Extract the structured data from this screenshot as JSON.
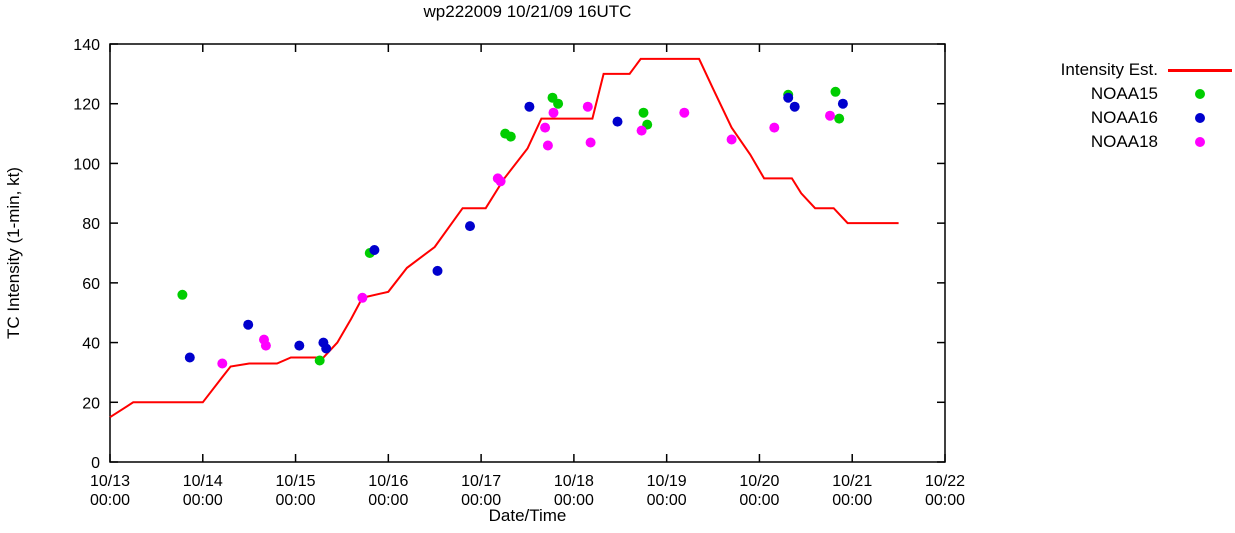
{
  "title": "wp222009 10/21/09 16UTC",
  "chart_data": {
    "type": "line",
    "title": "wp222009 10/21/09 16UTC",
    "xlabel": "Date/Time",
    "ylabel": "TC Intensity (1-min, kt)",
    "xlim": [
      0,
      9
    ],
    "ylim": [
      0,
      140
    ],
    "grid": false,
    "legend_position": "outside-right",
    "x_ticks": [
      {
        "day": 0,
        "date": "10/13",
        "time": "00:00"
      },
      {
        "day": 1,
        "date": "10/14",
        "time": "00:00"
      },
      {
        "day": 2,
        "date": "10/15",
        "time": "00:00"
      },
      {
        "day": 3,
        "date": "10/16",
        "time": "00:00"
      },
      {
        "day": 4,
        "date": "10/17",
        "time": "00:00"
      },
      {
        "day": 5,
        "date": "10/18",
        "time": "00:00"
      },
      {
        "day": 6,
        "date": "10/19",
        "time": "00:00"
      },
      {
        "day": 7,
        "date": "10/20",
        "time": "00:00"
      },
      {
        "day": 8,
        "date": "10/21",
        "time": "00:00"
      },
      {
        "day": 9,
        "date": "10/22",
        "time": "00:00"
      }
    ],
    "y_ticks": [
      0,
      20,
      40,
      60,
      80,
      100,
      120,
      140
    ],
    "series": [
      {
        "name": "Intensity Est.",
        "style": "line",
        "color": "#ff0000",
        "points": [
          [
            0.0,
            15
          ],
          [
            0.25,
            20
          ],
          [
            1.0,
            20
          ],
          [
            1.2,
            28
          ],
          [
            1.3,
            32
          ],
          [
            1.5,
            33
          ],
          [
            1.8,
            33
          ],
          [
            1.95,
            35
          ],
          [
            2.3,
            35
          ],
          [
            2.45,
            40
          ],
          [
            2.6,
            48
          ],
          [
            2.72,
            55
          ],
          [
            3.0,
            57
          ],
          [
            3.2,
            65
          ],
          [
            3.5,
            72
          ],
          [
            3.8,
            85
          ],
          [
            4.05,
            85
          ],
          [
            4.25,
            95
          ],
          [
            4.5,
            105
          ],
          [
            4.65,
            115
          ],
          [
            5.2,
            115
          ],
          [
            5.32,
            130
          ],
          [
            5.6,
            130
          ],
          [
            5.72,
            135
          ],
          [
            6.35,
            135
          ],
          [
            6.5,
            125
          ],
          [
            6.7,
            112
          ],
          [
            6.9,
            103
          ],
          [
            7.05,
            95
          ],
          [
            7.35,
            95
          ],
          [
            7.45,
            90
          ],
          [
            7.6,
            85
          ],
          [
            7.8,
            85
          ],
          [
            7.95,
            80
          ],
          [
            8.5,
            80
          ]
        ]
      },
      {
        "name": "NOAA15",
        "style": "points",
        "color": "#00cd00",
        "points": [
          [
            0.78,
            56
          ],
          [
            2.26,
            34
          ],
          [
            2.8,
            70
          ],
          [
            4.26,
            110
          ],
          [
            4.32,
            109
          ],
          [
            4.77,
            122
          ],
          [
            4.83,
            120
          ],
          [
            5.75,
            117
          ],
          [
            5.79,
            113
          ],
          [
            7.31,
            123
          ],
          [
            7.82,
            124
          ],
          [
            7.86,
            115
          ]
        ]
      },
      {
        "name": "NOAA16",
        "style": "points",
        "color": "#0000cd",
        "points": [
          [
            0.86,
            35
          ],
          [
            1.49,
            46
          ],
          [
            2.04,
            39
          ],
          [
            2.3,
            40
          ],
          [
            2.33,
            38
          ],
          [
            2.85,
            71
          ],
          [
            3.53,
            64
          ],
          [
            3.88,
            79
          ],
          [
            4.52,
            119
          ],
          [
            5.47,
            114
          ],
          [
            7.31,
            122
          ],
          [
            7.38,
            119
          ],
          [
            7.9,
            120
          ]
        ]
      },
      {
        "name": "NOAA18",
        "style": "points",
        "color": "#ff00ff",
        "points": [
          [
            1.21,
            33
          ],
          [
            1.66,
            41
          ],
          [
            1.68,
            39
          ],
          [
            2.72,
            55
          ],
          [
            4.18,
            95
          ],
          [
            4.21,
            94
          ],
          [
            4.69,
            112
          ],
          [
            4.72,
            106
          ],
          [
            4.78,
            117
          ],
          [
            5.15,
            119
          ],
          [
            5.18,
            107
          ],
          [
            5.73,
            111
          ],
          [
            6.19,
            117
          ],
          [
            6.7,
            108
          ],
          [
            7.16,
            112
          ],
          [
            7.76,
            116
          ]
        ]
      }
    ]
  }
}
